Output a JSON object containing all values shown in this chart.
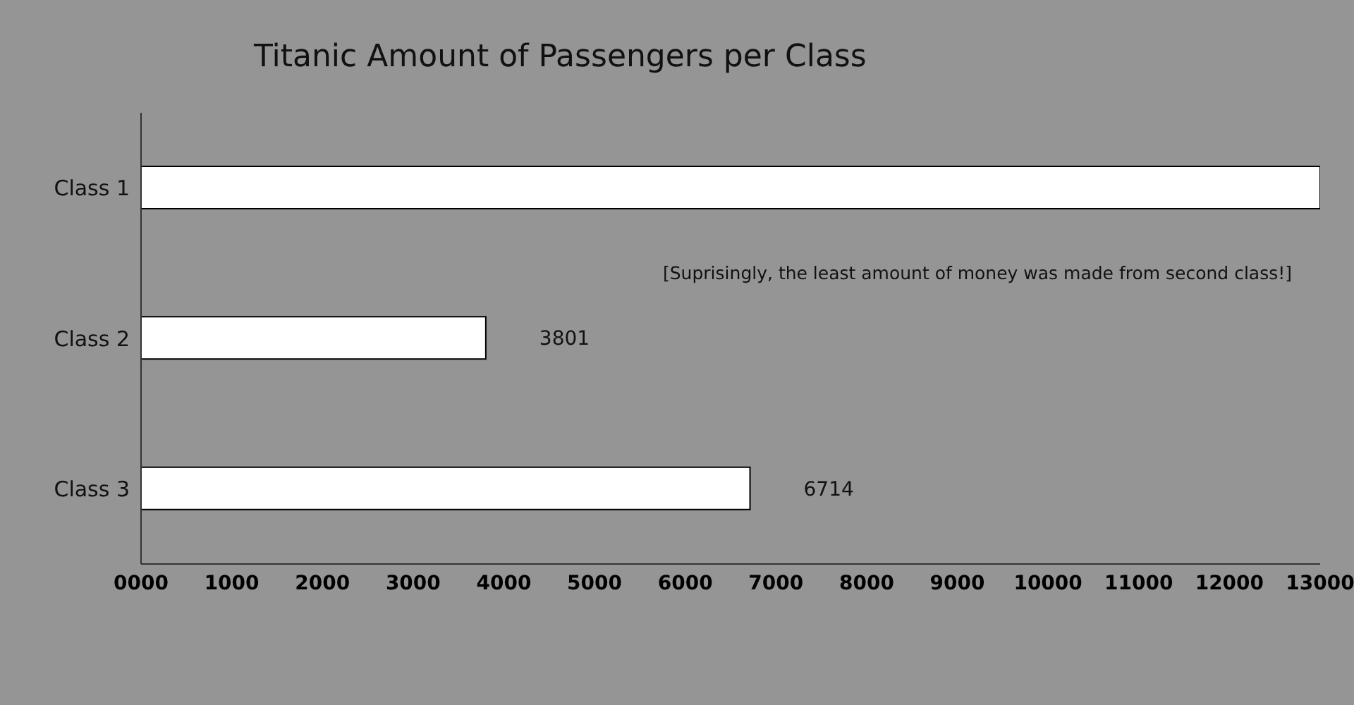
{
  "chart_data": {
    "type": "bar",
    "orientation": "horizontal",
    "title": "Titanic Amount of Passengers per Class",
    "categories": [
      "Class 1",
      "Class 2",
      "Class 3"
    ],
    "values": [
      13000,
      3801,
      6714
    ],
    "value_labels": [
      null,
      "3801",
      "6714"
    ],
    "color": "#ffffff",
    "xlim": [
      0,
      13000
    ],
    "xticks": [
      {
        "value": 0,
        "label": "0000"
      },
      1000,
      2000,
      3000,
      4000,
      5000,
      6000,
      7000,
      8000,
      9000,
      10000,
      11000,
      12000,
      13000
    ],
    "annotations": [
      "[Suprisingly, the least amount of money was made from second class!]"
    ],
    "grid": false,
    "legend": false
  }
}
